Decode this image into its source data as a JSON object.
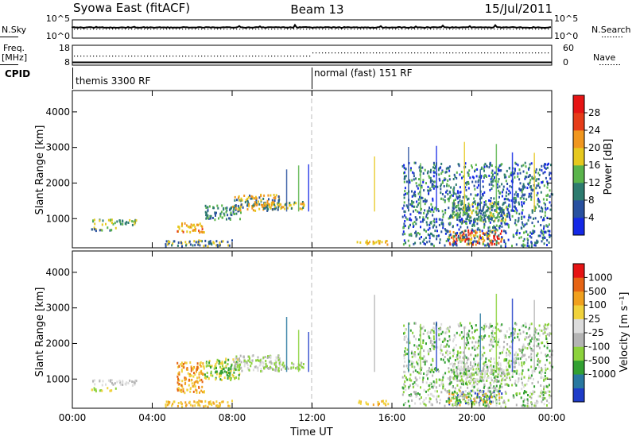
{
  "header": {
    "left": "Syowa East (fitACF)",
    "center": "Beam 13",
    "right": "15/Jul/2011"
  },
  "noise_panel": {
    "left_label": "N.Sky",
    "left_ticks": [
      "10^5",
      "10^0"
    ],
    "right_ticks": [
      "10^5",
      "10^0"
    ],
    "right_label": "N.Search"
  },
  "freq_panel": {
    "left_label_1": "Freq.",
    "left_label_2": "[MHz]",
    "left_ticks": [
      "18",
      "8"
    ],
    "right_ticks": [
      "60",
      "0"
    ],
    "right_label": "Nave"
  },
  "cpid_panel": {
    "label": "CPID",
    "modes": [
      {
        "name": "themis 3300 RF",
        "start_hour": 0
      },
      {
        "name": "normal (fast) 151 RF",
        "start_hour": 12
      }
    ]
  },
  "chart_data": [
    {
      "type": "heatmap",
      "title": "",
      "ylabel": "Slant Range [km]",
      "xlabel": "",
      "yticks": [
        "1000",
        "2000",
        "3000",
        "4000"
      ],
      "ylim": [
        180,
        4600
      ],
      "xlim_hours": [
        0,
        24
      ],
      "colorbar_label": "Power [dB]",
      "colorbar_ticks": [
        "4",
        "8",
        "12",
        "16",
        "20",
        "24",
        "28"
      ],
      "colorbar_colors": [
        "#1428e6",
        "#28509f",
        "#2d7b6f",
        "#5ab44b",
        "#e6c81e",
        "#f0961e",
        "#e63c19",
        "#e61414"
      ],
      "echo_regions": [
        {
          "x0": 1.0,
          "x1": 3.2,
          "y0": 850,
          "y1": 1000,
          "c": [
            3,
            4,
            2
          ]
        },
        {
          "x0": 0.9,
          "x1": 2.2,
          "y0": 680,
          "y1": 780,
          "c": [
            4,
            1,
            3
          ]
        },
        {
          "x0": 4.6,
          "x1": 8.0,
          "y0": 250,
          "y1": 420,
          "c": [
            1,
            2,
            4
          ]
        },
        {
          "x0": 5.2,
          "x1": 6.6,
          "y0": 640,
          "y1": 900,
          "c": [
            5,
            6,
            4
          ]
        },
        {
          "x0": 6.6,
          "x1": 8.4,
          "y0": 1000,
          "y1": 1400,
          "c": [
            1,
            2,
            3
          ]
        },
        {
          "x0": 8.0,
          "x1": 10.4,
          "y0": 1250,
          "y1": 1700,
          "c": [
            1,
            2,
            5,
            4
          ]
        },
        {
          "x0": 9.5,
          "x1": 11.6,
          "y0": 1300,
          "y1": 1500,
          "c": [
            5,
            4,
            2
          ]
        },
        {
          "x0": 14.2,
          "x1": 15.8,
          "y0": 300,
          "y1": 420,
          "c": [
            4,
            5
          ]
        },
        {
          "x0": 18.8,
          "x1": 21.8,
          "y0": 950,
          "y1": 1500,
          "c": [
            1,
            2,
            3,
            4
          ]
        },
        {
          "x0": 18.8,
          "x1": 21.5,
          "y0": 300,
          "y1": 700,
          "c": [
            6,
            7,
            5,
            4
          ]
        },
        {
          "x0": 16.5,
          "x1": 24.0,
          "y0": 250,
          "y1": 2600,
          "c": [
            1,
            2,
            0,
            3
          ]
        }
      ]
    },
    {
      "type": "heatmap",
      "title": "",
      "ylabel": "Slant Range [km]",
      "xlabel": "Time UT",
      "yticks": [
        "1000",
        "2000",
        "3000",
        "4000"
      ],
      "xticks": [
        "00:00",
        "04:00",
        "08:00",
        "12:00",
        "16:00",
        "20:00",
        "00:00"
      ],
      "ylim": [
        180,
        4600
      ],
      "xlim_hours": [
        0,
        24
      ],
      "colorbar_label": "Velocity [m s⁻¹]",
      "colorbar_ticks": [
        "1000",
        "500",
        "100",
        "25",
        "-25",
        "-100",
        "-500",
        "-1000"
      ],
      "colorbar_colors": [
        "#1e3cc8",
        "#2878a0",
        "#32a032",
        "#8cd23c",
        "#b4b4b4",
        "#dcdcdc",
        "#f0d23c",
        "#f0a01e",
        "#e66414",
        "#e61414"
      ],
      "echo_regions": [
        {
          "x0": 1.0,
          "x1": 3.2,
          "y0": 850,
          "y1": 1000,
          "c": [
            4,
            5
          ]
        },
        {
          "x0": 0.9,
          "x1": 2.2,
          "y0": 680,
          "y1": 780,
          "c": [
            3,
            6
          ]
        },
        {
          "x0": 4.6,
          "x1": 8.0,
          "y0": 250,
          "y1": 420,
          "c": [
            6,
            7
          ]
        },
        {
          "x0": 5.2,
          "x1": 6.6,
          "y0": 640,
          "y1": 1500,
          "c": [
            7,
            8,
            6
          ]
        },
        {
          "x0": 6.6,
          "x1": 8.4,
          "y0": 1000,
          "y1": 1600,
          "c": [
            3,
            2,
            6
          ]
        },
        {
          "x0": 8.0,
          "x1": 10.4,
          "y0": 1250,
          "y1": 1700,
          "c": [
            4,
            5,
            3
          ]
        },
        {
          "x0": 9.5,
          "x1": 11.6,
          "y0": 1300,
          "y1": 1500,
          "c": [
            4,
            3
          ]
        },
        {
          "x0": 14.2,
          "x1": 15.8,
          "y0": 300,
          "y1": 420,
          "c": [
            6,
            7
          ]
        },
        {
          "x0": 18.8,
          "x1": 21.8,
          "y0": 950,
          "y1": 1500,
          "c": [
            4,
            5,
            3
          ]
        },
        {
          "x0": 18.8,
          "x1": 21.5,
          "y0": 300,
          "y1": 700,
          "c": [
            2,
            3,
            0,
            7
          ]
        },
        {
          "x0": 16.5,
          "x1": 24.0,
          "y0": 250,
          "y1": 2600,
          "c": [
            4,
            5,
            3,
            2
          ]
        }
      ]
    }
  ]
}
